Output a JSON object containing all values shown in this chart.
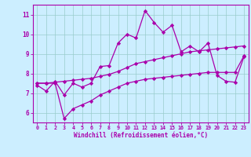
{
  "xlabel": "Windchill (Refroidissement éolien,°C)",
  "bg_color": "#cceeff",
  "line_color": "#aa00aa",
  "grid_color": "#99cccc",
  "spine_color": "#aa00aa",
  "xlim": [
    -0.5,
    23.5
  ],
  "ylim": [
    5.5,
    11.5
  ],
  "xticks": [
    0,
    1,
    2,
    3,
    4,
    5,
    6,
    7,
    8,
    9,
    10,
    11,
    12,
    13,
    14,
    15,
    16,
    17,
    18,
    19,
    20,
    21,
    22,
    23
  ],
  "yticks": [
    6,
    7,
    8,
    9,
    10,
    11
  ],
  "hours": [
    0,
    1,
    2,
    3,
    4,
    5,
    6,
    7,
    8,
    9,
    10,
    11,
    12,
    13,
    14,
    15,
    16,
    17,
    18,
    19,
    20,
    21,
    22,
    23
  ],
  "wavy": [
    7.4,
    7.1,
    7.6,
    6.9,
    7.5,
    7.3,
    7.5,
    8.35,
    8.4,
    9.55,
    10.0,
    9.8,
    11.2,
    10.6,
    10.1,
    10.45,
    9.1,
    9.4,
    9.1,
    9.55,
    7.9,
    7.6,
    7.55,
    8.85
  ],
  "upper": [
    7.5,
    7.5,
    7.55,
    7.6,
    7.65,
    7.7,
    7.75,
    7.85,
    7.95,
    8.1,
    8.3,
    8.5,
    8.6,
    8.7,
    8.8,
    8.9,
    9.0,
    9.1,
    9.15,
    9.2,
    9.25,
    9.3,
    9.35,
    9.4
  ],
  "lower": [
    7.5,
    7.5,
    7.5,
    5.7,
    6.2,
    6.4,
    6.6,
    6.9,
    7.1,
    7.3,
    7.5,
    7.6,
    7.7,
    7.75,
    7.8,
    7.85,
    7.9,
    7.95,
    8.0,
    8.05,
    8.05,
    8.05,
    8.05,
    8.9
  ]
}
